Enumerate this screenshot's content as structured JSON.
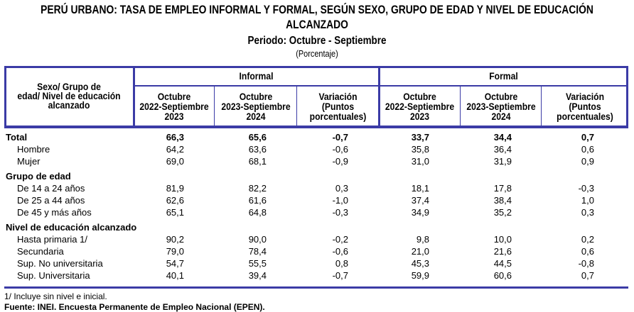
{
  "title_line1": "PERÚ URBANO: TASA DE EMPLEO INFORMAL Y FORMAL, SEGÚN SEXO, GRUPO DE EDAD Y NIVEL DE EDUCACIÓN",
  "title_line2": "ALCANZADO",
  "period": "Periodo: Octubre - Septiembre",
  "unit": "(Porcentaje)",
  "colors": {
    "border": "#3b3ba6"
  },
  "header": {
    "stub": [
      "Sexo/ Grupo de",
      "edad/ Nivel de educación",
      "alcanzado"
    ],
    "informal": "Informal",
    "formal": "Formal",
    "sub": [
      [
        "Octubre",
        "2022-Septiembre",
        "2023"
      ],
      [
        "Octubre",
        "2023-Septiembre",
        "2024"
      ],
      [
        "Variación",
        "(Puntos",
        "porcentuales)"
      ],
      [
        "Octubre",
        "2022-Septiembre",
        "2023"
      ],
      [
        "Octubre",
        "2023-Septiembre",
        "2024"
      ],
      [
        "Variación",
        "(Puntos",
        "porcentuales)"
      ]
    ]
  },
  "rows": [
    {
      "label": "Total",
      "bold": true,
      "values": [
        "66,3",
        "65,6",
        "-0,7",
        "33,7",
        "34,4",
        "0,7"
      ]
    },
    {
      "label": "Hombre",
      "indent": true,
      "values": [
        "64,2",
        "63,6",
        "-0,6",
        "35,8",
        "36,4",
        "0,6"
      ]
    },
    {
      "label": "Mujer",
      "indent": true,
      "values": [
        "69,0",
        "68,1",
        "-0,9",
        "31,0",
        "31,9",
        "0,9"
      ]
    },
    {
      "label": "Grupo de edad",
      "bold": true,
      "values": []
    },
    {
      "label": "De 14 a 24 años",
      "indent": true,
      "values": [
        "81,9",
        "82,2",
        "0,3",
        "18,1",
        "17,8",
        "-0,3"
      ]
    },
    {
      "label": "De 25 a 44 años",
      "indent": true,
      "values": [
        "62,6",
        "61,6",
        "-1,0",
        "37,4",
        "38,4",
        "1,0"
      ]
    },
    {
      "label": "De 45 y más años",
      "indent": true,
      "values": [
        "65,1",
        "64,8",
        "-0,3",
        "34,9",
        "35,2",
        "0,3"
      ]
    },
    {
      "label": "Nivel de educación alcanzado",
      "bold": true,
      "values": []
    },
    {
      "label": "Hasta primaria 1/",
      "indent": true,
      "values": [
        "90,2",
        "90,0",
        "-0,2",
        "9,8",
        "10,0",
        "0,2"
      ]
    },
    {
      "label": "Secundaria",
      "indent": true,
      "values": [
        "79,0",
        "78,4",
        "-0,6",
        "21,0",
        "21,6",
        "0,6"
      ]
    },
    {
      "label": "Sup. No universitaria",
      "indent": true,
      "values": [
        "54,7",
        "55,5",
        "0,8",
        "45,3",
        "44,5",
        "-0,8"
      ]
    },
    {
      "label": "Sup. Universitaria",
      "indent": true,
      "values": [
        "40,1",
        "39,4",
        "-0,7",
        "59,9",
        "60,6",
        "0,7"
      ]
    }
  ],
  "footnote": "1/ Incluye sin nivel e inicial.",
  "source": "Fuente: INEI. Encuesta Permanente de Empleo Nacional (EPEN)."
}
